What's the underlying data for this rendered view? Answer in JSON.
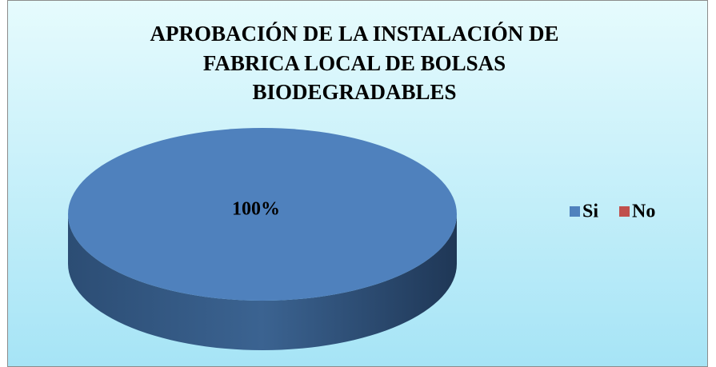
{
  "chart_data": {
    "type": "pie",
    "title": [
      "APROBACIÓN DE LA INSTALACIÓN DE",
      "FABRICA LOCAL DE BOLSAS",
      "BIODEGRADABLES"
    ],
    "categories": [
      "Si",
      "No"
    ],
    "values": [
      100,
      0
    ],
    "value_labels": [
      "100%",
      null
    ],
    "colors": [
      "#4f81bd",
      "#c0504d"
    ],
    "legend": "right"
  }
}
